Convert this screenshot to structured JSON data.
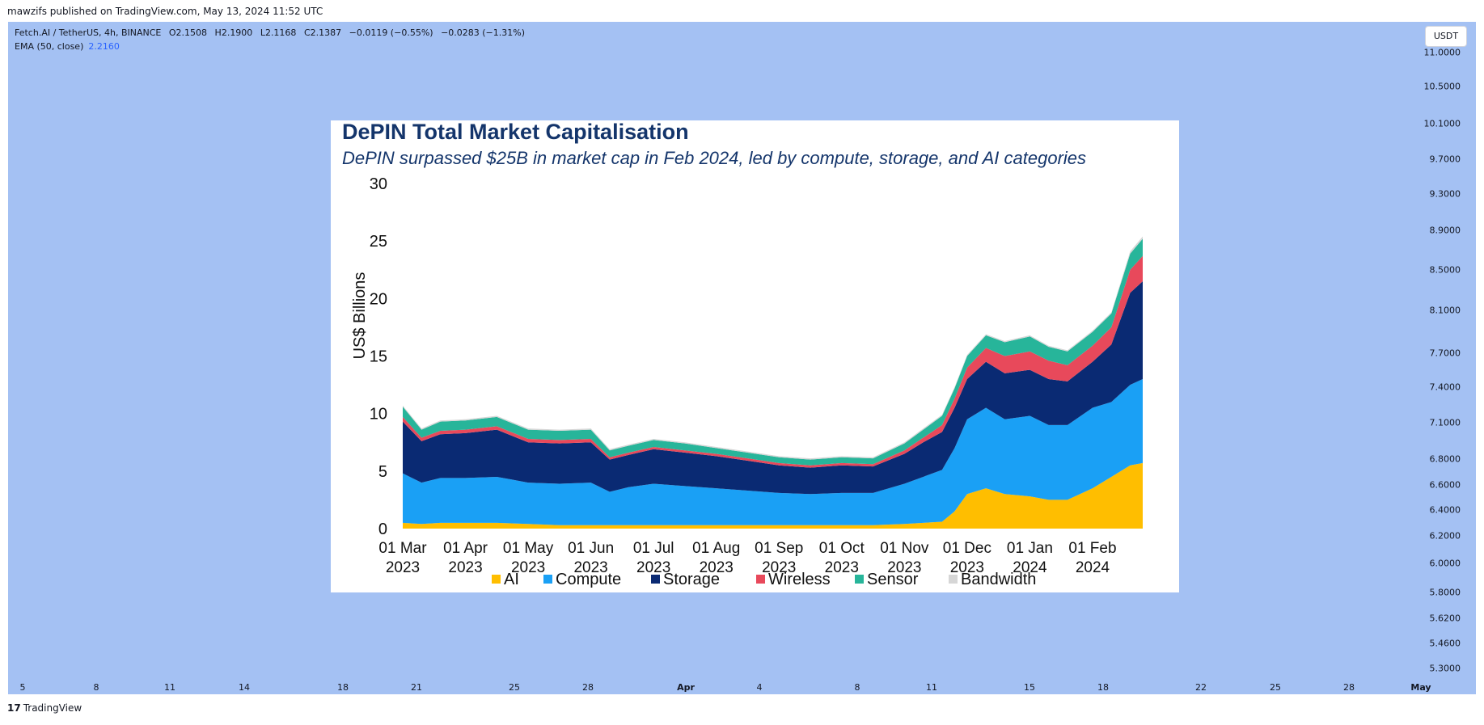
{
  "attribution": "mawzifs published on TradingView.com, May 13, 2024 11:52 UTC",
  "ohlc": {
    "symbol": "Fetch.AI / TetherUS, 4h, BINANCE",
    "open": "O2.1508",
    "high": "H2.1900",
    "low": "L2.1168",
    "close": "C2.1387",
    "change": "−0.0119 (−0.55%)",
    "change2": "−0.0283 (−1.31%)"
  },
  "ema": {
    "label": "EMA (50, close)",
    "value": "2.2160"
  },
  "currency_button": "USDT",
  "price_axis": [
    "11.0000",
    "10.5000",
    "10.1000",
    "9.7000",
    "9.3000",
    "8.9000",
    "8.5000",
    "8.1000",
    "7.7000",
    "7.4000",
    "7.1000",
    "6.8000",
    "6.6000",
    "6.4000",
    "6.2000",
    "6.0000",
    "5.8000",
    "5.6200",
    "5.4600",
    "5.3000"
  ],
  "time_axis": [
    "5",
    "8",
    "11",
    "14",
    "18",
    "21",
    "25",
    "28",
    "Apr",
    "4",
    "8",
    "11",
    "15",
    "18",
    "22",
    "25",
    "28",
    "May"
  ],
  "footer": {
    "logo": "17",
    "brand": "TradingView"
  },
  "colors": {
    "panel_bg": "#a4c1f3",
    "ai": "#ffbe00",
    "compute": "#1aa0f5",
    "storage": "#0a2a73",
    "wireless": "#e8495b",
    "sensor": "#27b59a",
    "bandwidth": "#d6d6d6",
    "title": "#14356b",
    "ema_value": "#2962ff"
  },
  "chart_data": {
    "type": "area",
    "stacked": true,
    "title": "DePIN Total Market Capitalisation",
    "subtitle": "DePIN surpassed $25B in market cap in Feb 2024, led by compute, storage, and AI categories",
    "xlabel": "",
    "ylabel": "US$ Billions",
    "ylim": [
      0,
      30
    ],
    "yticks": [
      0,
      5,
      10,
      15,
      20,
      25,
      30
    ],
    "xlim": [
      0,
      11.8
    ],
    "xticks": [
      {
        "pos": 0,
        "label": "01 Mar",
        "label2": "2023"
      },
      {
        "pos": 1,
        "label": "01 Apr",
        "label2": "2023"
      },
      {
        "pos": 2,
        "label": "01 May",
        "label2": "2023"
      },
      {
        "pos": 3,
        "label": "01 Jun",
        "label2": "2023"
      },
      {
        "pos": 4,
        "label": "01 Jul",
        "label2": "2023"
      },
      {
        "pos": 5,
        "label": "01 Aug",
        "label2": "2023"
      },
      {
        "pos": 6,
        "label": "01 Sep",
        "label2": "2023"
      },
      {
        "pos": 7,
        "label": "01 Oct",
        "label2": "2023"
      },
      {
        "pos": 8,
        "label": "01 Nov",
        "label2": "2023"
      },
      {
        "pos": 9,
        "label": "01 Dec",
        "label2": "2023"
      },
      {
        "pos": 10,
        "label": "01 Jan",
        "label2": "2024"
      },
      {
        "pos": 11,
        "label": "01 Feb",
        "label2": "2024"
      }
    ],
    "x": [
      0,
      0.3,
      0.6,
      1.0,
      1.5,
      2.0,
      2.5,
      3.0,
      3.3,
      3.6,
      4.0,
      4.5,
      5.0,
      5.5,
      6.0,
      6.5,
      7.0,
      7.5,
      8.0,
      8.3,
      8.6,
      8.8,
      9.0,
      9.3,
      9.6,
      10.0,
      10.3,
      10.6,
      11.0,
      11.3,
      11.6,
      11.8
    ],
    "series": [
      {
        "name": "AI",
        "values": [
          0.5,
          0.4,
          0.5,
          0.5,
          0.5,
          0.4,
          0.3,
          0.3,
          0.3,
          0.3,
          0.3,
          0.3,
          0.3,
          0.3,
          0.3,
          0.3,
          0.3,
          0.3,
          0.4,
          0.5,
          0.6,
          1.5,
          3.0,
          3.5,
          3.0,
          2.8,
          2.5,
          2.5,
          3.5,
          4.5,
          5.5,
          5.7
        ]
      },
      {
        "name": "Compute",
        "values": [
          4.3,
          3.6,
          3.9,
          3.9,
          4.0,
          3.6,
          3.6,
          3.7,
          2.9,
          3.3,
          3.6,
          3.4,
          3.2,
          3.0,
          2.8,
          2.7,
          2.8,
          2.8,
          3.5,
          4.0,
          4.5,
          5.5,
          6.5,
          7.0,
          6.5,
          7.0,
          6.5,
          6.5,
          7.0,
          6.5,
          7.0,
          7.3
        ]
      },
      {
        "name": "Storage",
        "values": [
          4.5,
          3.6,
          3.8,
          3.9,
          4.1,
          3.5,
          3.5,
          3.5,
          2.8,
          2.8,
          3.0,
          2.9,
          2.8,
          2.6,
          2.4,
          2.3,
          2.4,
          2.3,
          2.6,
          3.0,
          3.3,
          3.5,
          3.5,
          4.0,
          4.0,
          4.0,
          4.0,
          3.8,
          4.0,
          5.0,
          8.0,
          8.5
        ]
      },
      {
        "name": "Wireless",
        "values": [
          0.4,
          0.3,
          0.3,
          0.3,
          0.3,
          0.3,
          0.3,
          0.3,
          0.2,
          0.2,
          0.2,
          0.2,
          0.2,
          0.2,
          0.2,
          0.2,
          0.2,
          0.2,
          0.3,
          0.4,
          0.6,
          0.8,
          1.0,
          1.2,
          1.5,
          1.6,
          1.6,
          1.4,
          1.4,
          1.5,
          2.0,
          2.2
        ]
      },
      {
        "name": "Sensor",
        "values": [
          0.9,
          0.7,
          0.8,
          0.8,
          0.8,
          0.8,
          0.8,
          0.8,
          0.6,
          0.6,
          0.6,
          0.6,
          0.5,
          0.5,
          0.5,
          0.5,
          0.5,
          0.5,
          0.6,
          0.7,
          0.8,
          0.9,
          1.0,
          1.1,
          1.2,
          1.3,
          1.2,
          1.2,
          1.2,
          1.2,
          1.4,
          1.5
        ]
      },
      {
        "name": "Bandwidth",
        "values": [
          0.1,
          0.1,
          0.1,
          0.1,
          0.1,
          0.1,
          0.1,
          0.1,
          0.1,
          0.1,
          0.1,
          0.1,
          0.1,
          0.1,
          0.1,
          0.1,
          0.1,
          0.1,
          0.1,
          0.1,
          0.1,
          0.1,
          0.1,
          0.1,
          0.1,
          0.1,
          0.1,
          0.1,
          0.1,
          0.1,
          0.2,
          0.2
        ]
      }
    ],
    "legend": {
      "placement": "bottom",
      "items": [
        "AI",
        "Compute",
        "Storage",
        "Wireless",
        "Sensor",
        "Bandwidth"
      ]
    }
  }
}
